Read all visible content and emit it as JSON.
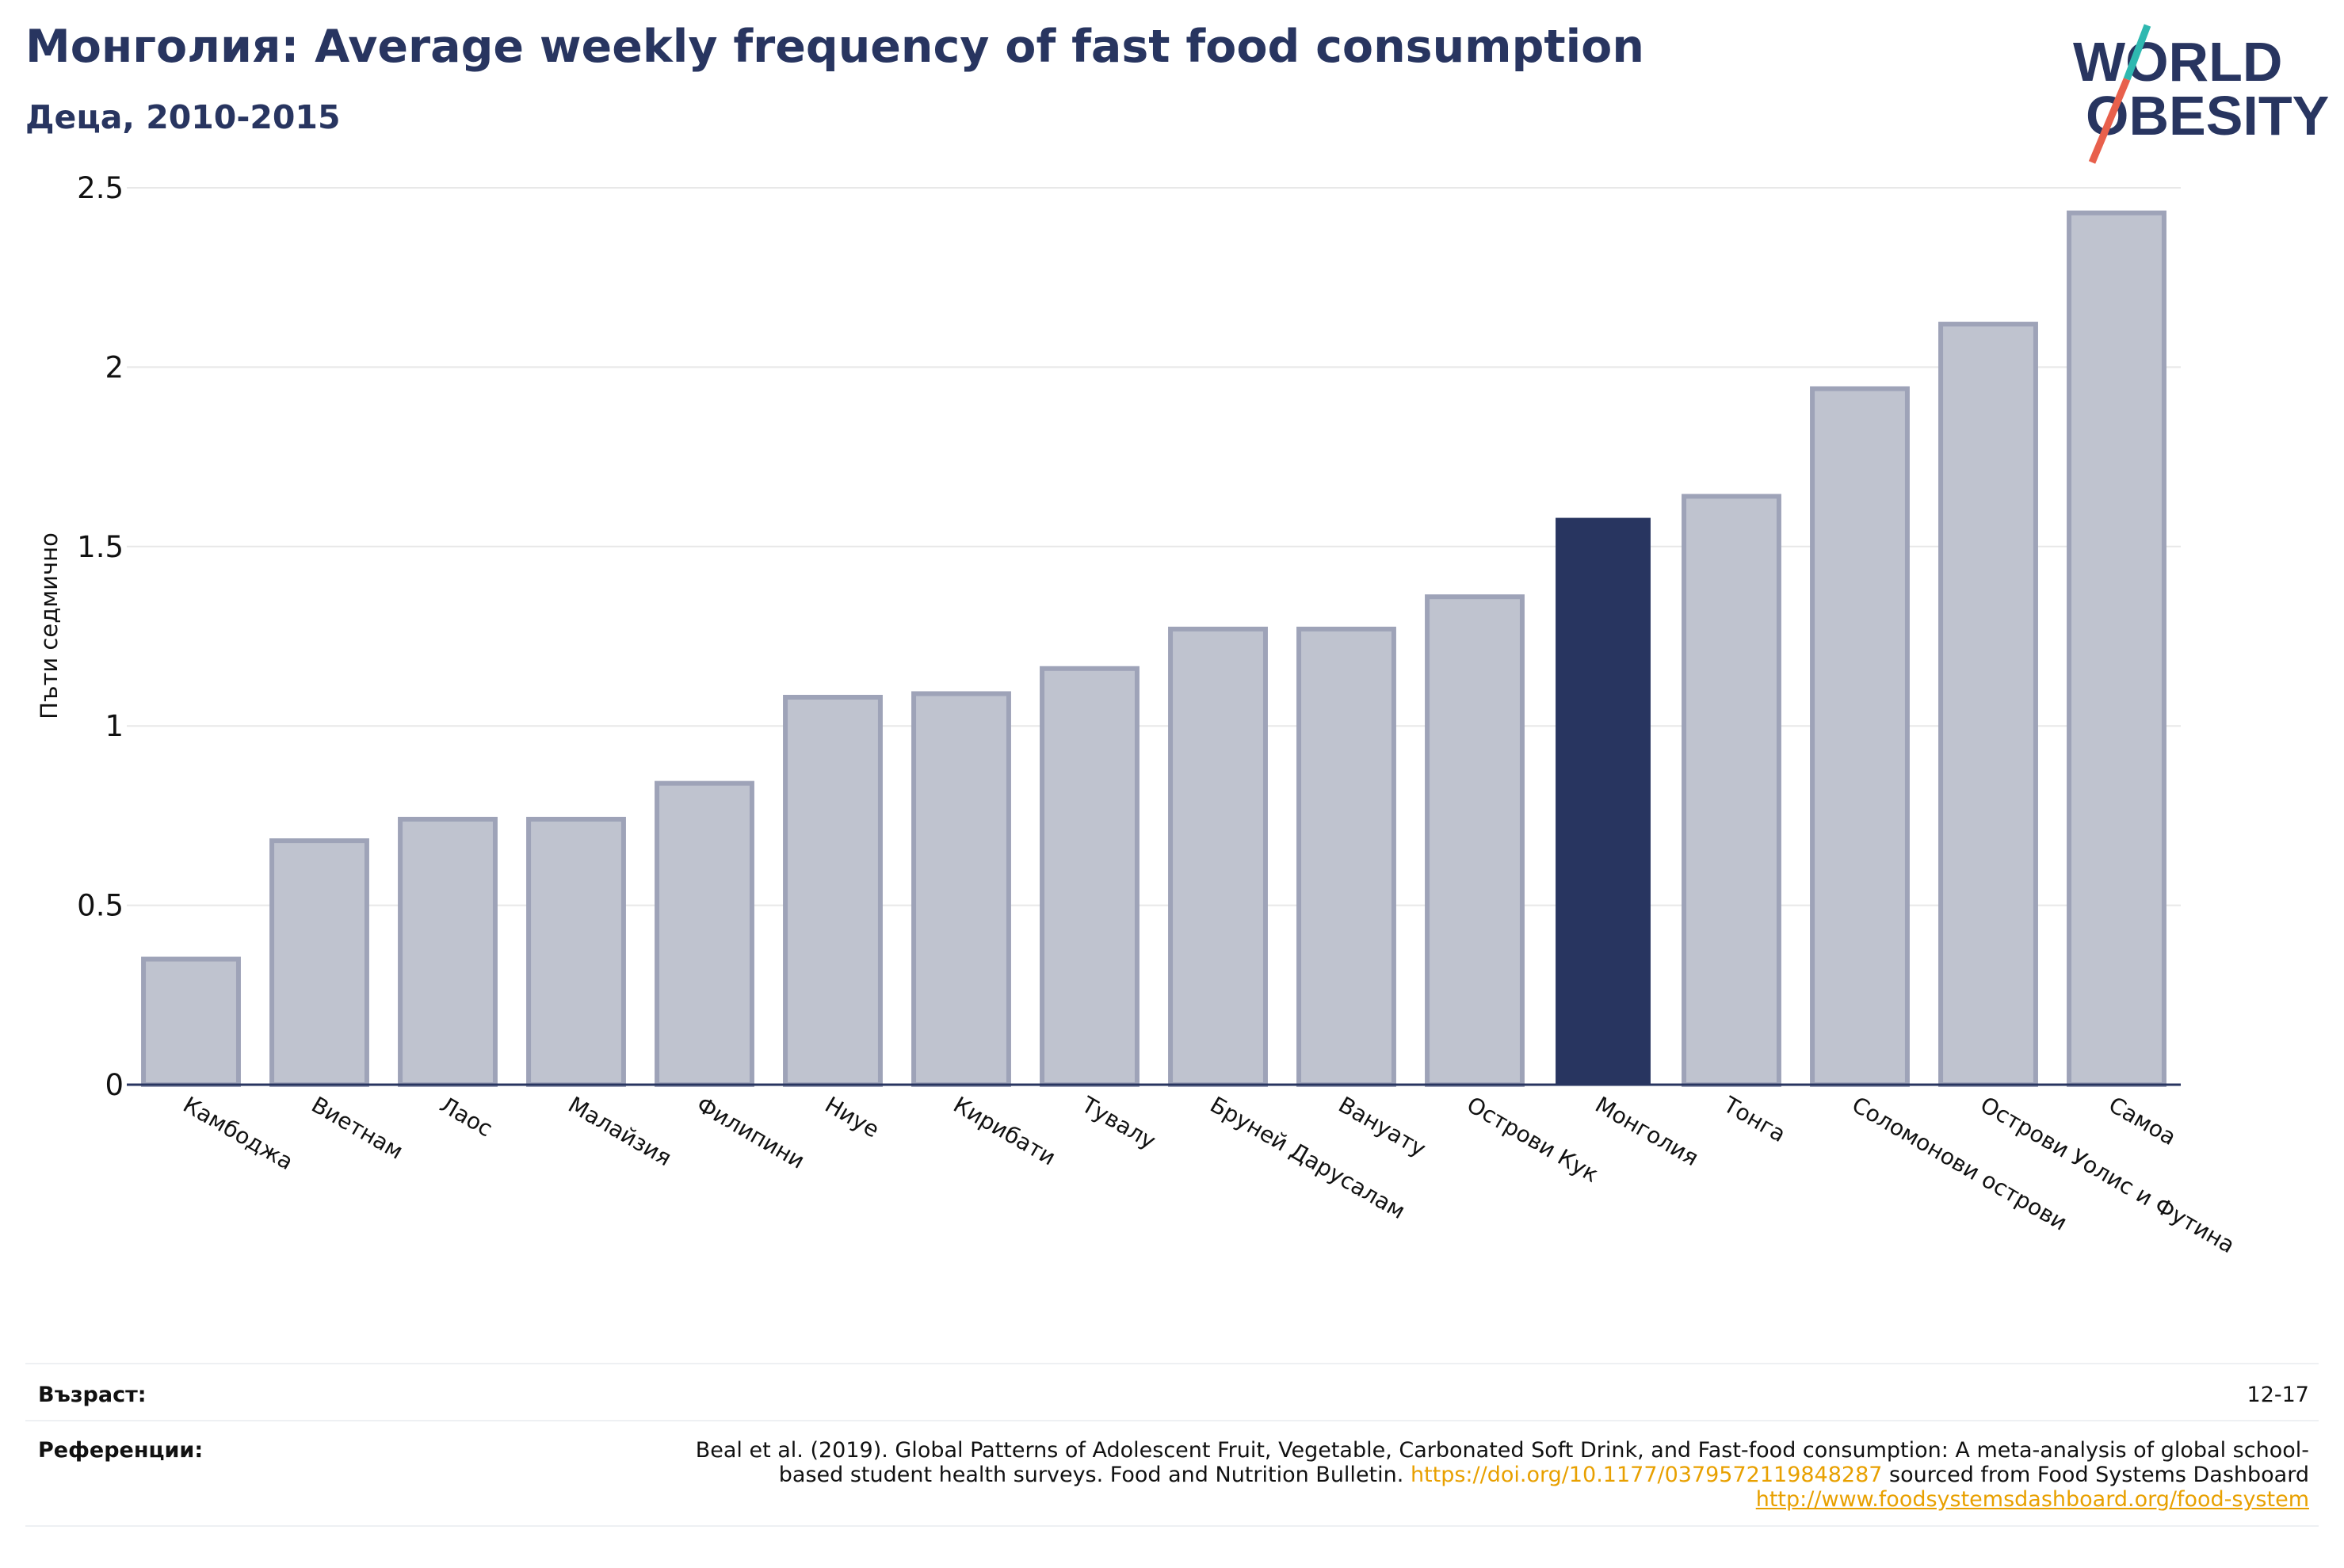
{
  "title": "Монголия: Average weekly frequency of fast food consumption",
  "subtitle": "Деца, 2010-2015",
  "logo": {
    "line1": "WORLD",
    "line2": "OBESITY"
  },
  "chart_data": {
    "type": "bar",
    "ylabel": "Пъти седмично",
    "ylim": [
      0,
      2.5
    ],
    "yticks": [
      0,
      0.5,
      1,
      1.5,
      2,
      2.5
    ],
    "ytick_labels": [
      "0",
      "0.5",
      "1",
      "1.5",
      "2",
      "2.5"
    ],
    "grid": true,
    "categories": [
      "Камбоджа",
      "Виетнам",
      "Лаос",
      "Малайзия",
      "Филипини",
      "Ниуе",
      "Кирибати",
      "Тувалу",
      "Бруней Дарусалам",
      "Вануату",
      "Острови Кук",
      "Монголия",
      "Тонга",
      "Соломонови острови",
      "Острови Уолис и Футина",
      "Самоа"
    ],
    "values": [
      0.35,
      0.68,
      0.74,
      0.74,
      0.84,
      1.08,
      1.09,
      1.16,
      1.27,
      1.27,
      1.36,
      1.58,
      1.64,
      1.94,
      2.12,
      2.43
    ],
    "highlight": "Монголия",
    "colors": {
      "highlight": "#283560",
      "default": "#bfc3cf",
      "default_edge": "#9ea3b8",
      "grid": "#e8e8e8"
    }
  },
  "footer": {
    "age_label": "Възраст:",
    "age_value": "12-17",
    "refs_label": "Референции:",
    "refs_text_1": "Beal et al. (2019). Global Patterns of Adolescent Fruit, Vegetable, Carbonated Soft Drink, and Fast-food consumption: A meta-analysis of global school-based student health surveys. Food and Nutrition Bulletin.",
    "refs_doi": "https://doi.org/10.1177/0379572119848287",
    "refs_text_2": "sourced from Food Systems Dashboard",
    "refs_link": "http://www.foodsystemsdashboard.org/food-system"
  }
}
